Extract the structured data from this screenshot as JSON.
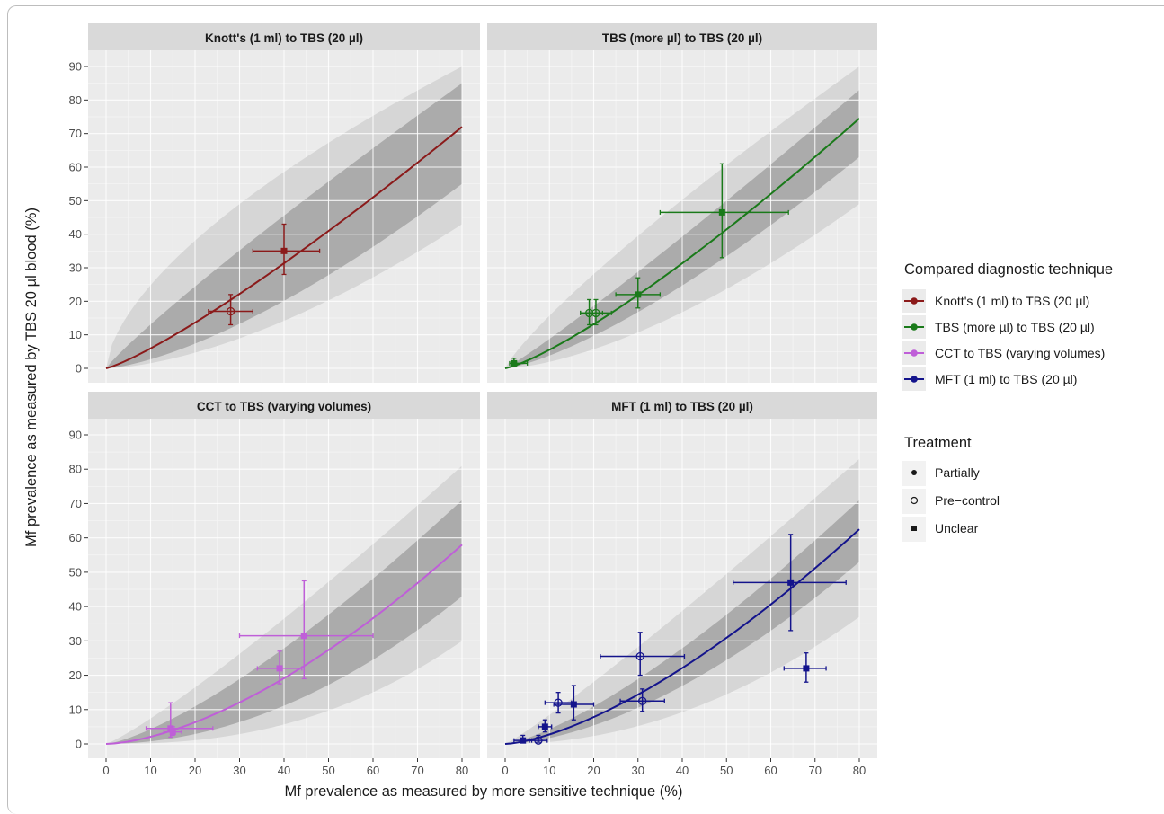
{
  "figure": {
    "ylabel": "Mf prevalence as measured by TBS 20 µl blood (%)",
    "xlabel": "Mf prevalence as measured by more sensitive technique (%)"
  },
  "legend": {
    "technique_title": "Compared diagnostic technique",
    "techniques": [
      {
        "label": "Knott's (1 ml) to TBS (20 µl)",
        "color": "#8b1a1a"
      },
      {
        "label": "TBS (more µl) to TBS (20 µl)",
        "color": "#1a7a1a"
      },
      {
        "label": "CCT to TBS (varying volumes)",
        "color": "#bf5fd8"
      },
      {
        "label": "MFT (1 ml) to TBS (20 µl)",
        "color": "#14148c"
      }
    ],
    "treatment_title": "Treatment",
    "treatments": [
      {
        "label": "Partially",
        "shape": "filled-circle"
      },
      {
        "label": "Pre−control",
        "shape": "open-circle"
      },
      {
        "label": "Unclear",
        "shape": "filled-square"
      }
    ]
  },
  "chart_data": [
    {
      "type": "scatter",
      "title": "Knott's (1 ml) to TBS (20 µl)",
      "color": "#8b1a1a",
      "xlim": [
        0,
        80
      ],
      "ylim": [
        0,
        90
      ],
      "xticks": [
        0,
        10,
        20,
        30,
        40,
        50,
        60,
        70,
        80
      ],
      "yticks": [
        0,
        10,
        20,
        30,
        40,
        50,
        60,
        70,
        80,
        90
      ],
      "curve": {
        "end": 72,
        "exp": 1.2
      },
      "band_inner": {
        "lower_end": 55,
        "lower_exp": 1.45,
        "upper_end": 85,
        "upper_exp": 0.9
      },
      "band_outer": {
        "lower_end": 43,
        "lower_exp": 1.6,
        "upper_end": 90,
        "upper_exp": 0.62
      },
      "points": [
        {
          "x": 28,
          "y": 17,
          "xlo": 23,
          "xhi": 33,
          "ylo": 13,
          "yhi": 22,
          "shape": "open-circle"
        },
        {
          "x": 40,
          "y": 35,
          "xlo": 33,
          "xhi": 48,
          "ylo": 28,
          "yhi": 43,
          "shape": "filled-square"
        }
      ]
    },
    {
      "type": "scatter",
      "title": "TBS (more µl) to TBS (20 µl)",
      "color": "#1a7a1a",
      "xlim": [
        0,
        80
      ],
      "ylim": [
        0,
        90
      ],
      "xticks": [
        0,
        10,
        20,
        30,
        40,
        50,
        60,
        70,
        80
      ],
      "yticks": [
        0,
        10,
        20,
        30,
        40,
        50,
        60,
        70,
        80,
        90
      ],
      "curve": {
        "end": 74.5,
        "exp": 1.25
      },
      "band_inner": {
        "lower_end": 63,
        "lower_exp": 1.35,
        "upper_end": 83,
        "upper_exp": 1.08
      },
      "band_outer": {
        "lower_end": 49,
        "lower_exp": 1.55,
        "upper_end": 90,
        "upper_exp": 0.84
      },
      "points": [
        {
          "x": 2,
          "y": 1.5,
          "xlo": 1,
          "xhi": 5,
          "ylo": 0.5,
          "yhi": 3,
          "shape": "filled-square"
        },
        {
          "x": 19,
          "y": 16.5,
          "xlo": 17,
          "xhi": 22,
          "ylo": 13,
          "yhi": 20.5,
          "shape": "open-circle"
        },
        {
          "x": 20.5,
          "y": 16.5,
          "xlo": 17,
          "xhi": 24,
          "ylo": 13,
          "yhi": 20.5,
          "shape": "open-circle"
        },
        {
          "x": 30,
          "y": 22,
          "xlo": 25,
          "xhi": 35,
          "ylo": 18,
          "yhi": 27,
          "shape": "filled-square"
        },
        {
          "x": 49,
          "y": 46.5,
          "xlo": 35,
          "xhi": 64,
          "ylo": 33,
          "yhi": 61,
          "shape": "filled-square"
        }
      ]
    },
    {
      "type": "scatter",
      "title": "CCT to TBS (varying volumes)",
      "color": "#bf5fd8",
      "xlim": [
        0,
        80
      ],
      "ylim": [
        0,
        90
      ],
      "xticks": [
        0,
        10,
        20,
        30,
        40,
        50,
        60,
        70,
        80
      ],
      "yticks": [
        0,
        10,
        20,
        30,
        40,
        50,
        60,
        70,
        80,
        90
      ],
      "curve": {
        "end": 58,
        "exp": 1.6
      },
      "band_inner": {
        "lower_end": 43,
        "lower_exp": 1.95,
        "upper_end": 71,
        "upper_exp": 1.35
      },
      "band_outer": {
        "lower_end": 30,
        "lower_exp": 2.4,
        "upper_end": 81,
        "upper_exp": 1.15
      },
      "points": [
        {
          "x": 14.5,
          "y": 4.5,
          "xlo": 9,
          "xhi": 24,
          "ylo": 2,
          "yhi": 12,
          "shape": "filled-square"
        },
        {
          "x": 15,
          "y": 3.5,
          "xlo": 13,
          "xhi": 17,
          "ylo": 2.5,
          "yhi": 5,
          "shape": "filled-square"
        },
        {
          "x": 39,
          "y": 22,
          "xlo": 34,
          "xhi": 44,
          "ylo": 17.5,
          "yhi": 27,
          "shape": "filled-square"
        },
        {
          "x": 44.5,
          "y": 31.5,
          "xlo": 30,
          "xhi": 60,
          "ylo": 19,
          "yhi": 47.5,
          "shape": "filled-square"
        }
      ]
    },
    {
      "type": "scatter",
      "title": "MFT (1 ml) to TBS (20 µl)",
      "color": "#14148c",
      "xlim": [
        0,
        80
      ],
      "ylim": [
        0,
        90
      ],
      "xticks": [
        0,
        10,
        20,
        30,
        40,
        50,
        60,
        70,
        80
      ],
      "yticks": [
        0,
        10,
        20,
        30,
        40,
        50,
        60,
        70,
        80,
        90
      ],
      "curve": {
        "end": 62.5,
        "exp": 1.5
      },
      "band_inner": {
        "lower_end": 53,
        "lower_exp": 1.65,
        "upper_end": 71,
        "upper_exp": 1.35
      },
      "band_outer": {
        "lower_end": 37,
        "lower_exp": 2.0,
        "upper_end": 83,
        "upper_exp": 1.1
      },
      "points": [
        {
          "x": 4,
          "y": 1,
          "xlo": 2,
          "xhi": 6,
          "ylo": 0.5,
          "yhi": 2.5,
          "shape": "filled-square"
        },
        {
          "x": 7.5,
          "y": 1,
          "xlo": 5.5,
          "xhi": 9.5,
          "ylo": 0.5,
          "yhi": 2.5,
          "shape": "open-circle"
        },
        {
          "x": 9,
          "y": 5,
          "xlo": 7.5,
          "xhi": 10.5,
          "ylo": 3.5,
          "yhi": 7,
          "shape": "filled-square"
        },
        {
          "x": 12,
          "y": 12,
          "xlo": 9,
          "xhi": 15,
          "ylo": 9,
          "yhi": 15,
          "shape": "open-circle"
        },
        {
          "x": 15.5,
          "y": 11.5,
          "xlo": 11,
          "xhi": 20,
          "ylo": 7,
          "yhi": 17,
          "shape": "filled-square"
        },
        {
          "x": 30.5,
          "y": 25.5,
          "xlo": 21.5,
          "xhi": 40.5,
          "ylo": 20,
          "yhi": 32.5,
          "shape": "open-circle"
        },
        {
          "x": 31,
          "y": 12.5,
          "xlo": 26,
          "xhi": 36,
          "ylo": 9.5,
          "yhi": 16,
          "shape": "open-circle"
        },
        {
          "x": 64.5,
          "y": 47,
          "xlo": 51.5,
          "xhi": 77,
          "ylo": 33,
          "yhi": 61,
          "shape": "filled-square"
        },
        {
          "x": 68,
          "y": 22,
          "xlo": 63,
          "xhi": 72.5,
          "ylo": 18,
          "yhi": 26.5,
          "shape": "filled-square"
        }
      ]
    }
  ]
}
